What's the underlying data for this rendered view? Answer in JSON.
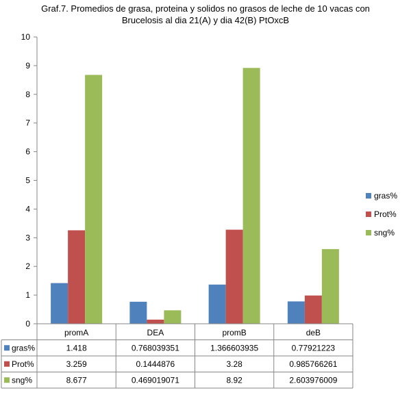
{
  "chart_data": {
    "type": "bar",
    "title_lines": [
      "Graf.7. Promedios de grasa, proteina y solidos no grasos de leche de 10  vacas con",
      "Brucelosis al dia 21(A) y dia 42(B) PtOxcB"
    ],
    "categories": [
      "promA",
      "DEA",
      "promB",
      "deB"
    ],
    "series": [
      {
        "name": "gras%",
        "color": "#4f81bd",
        "values": [
          1.418,
          0.768039351,
          1.366603935,
          0.77921223
        ],
        "labels": [
          "1.418",
          "0.768039351",
          "1.366603935",
          "0.77921223"
        ]
      },
      {
        "name": "Prot%",
        "color": "#c0504d",
        "values": [
          3.259,
          0.1444876,
          3.28,
          0.985766261
        ],
        "labels": [
          "3.259",
          "0.1444876",
          "3.28",
          "0.985766261"
        ]
      },
      {
        "name": "sng%",
        "color": "#9bbb59",
        "values": [
          8.677,
          0.469019071,
          8.92,
          2.603976009
        ],
        "labels": [
          "8.677",
          "0.469019071",
          "8.92",
          "2.603976009"
        ]
      }
    ],
    "ylim": [
      0,
      10
    ],
    "yticks": [
      "0",
      "1",
      "2",
      "3",
      "4",
      "5",
      "6",
      "7",
      "8",
      "9",
      "10"
    ],
    "grid": false,
    "legend_position": "right",
    "data_table": true
  }
}
